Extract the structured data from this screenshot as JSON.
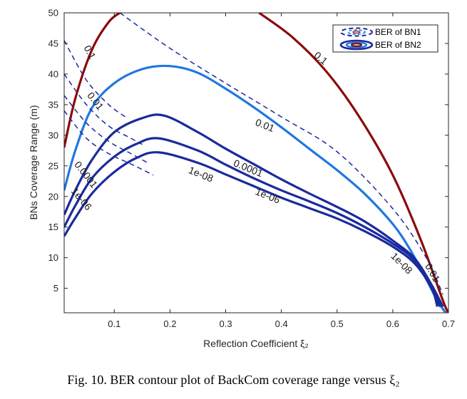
{
  "caption": "Fig. 10.  BER contour plot of BackCom coverage range versus ξ₂",
  "chart_data": {
    "type": "contour",
    "xlabel": "Reflection Coefficient ξ₂",
    "ylabel": "BNs Coverage Range (m)",
    "xlim": [
      0.01,
      0.7
    ],
    "ylim": [
      1,
      50
    ],
    "xticks": [
      "0.1",
      "0.2",
      "0.3",
      "0.4",
      "0.5",
      "0.6",
      "0.7"
    ],
    "yticks": [
      "5",
      "10",
      "15",
      "20",
      "25",
      "30",
      "35",
      "40",
      "45",
      "50"
    ],
    "grid": false,
    "legend_position": "top-right",
    "legend": [
      {
        "label": "BER of BN1",
        "style": "dashed"
      },
      {
        "label": "BER of BN2",
        "style": "solid"
      }
    ],
    "series": [
      {
        "name": "BER of BN2",
        "style": "solid",
        "level": "0.1",
        "color": "#8b0a0a",
        "points": [
          [
            0.01,
            28
          ],
          [
            0.03,
            36
          ],
          [
            0.06,
            44
          ],
          [
            0.09,
            48.5
          ],
          [
            0.11,
            50
          ]
        ]
      },
      {
        "name": "BER of BN2",
        "style": "solid",
        "level": "0.1",
        "color": "#8b0a0a",
        "points": [
          [
            0.36,
            50
          ],
          [
            0.42,
            46
          ],
          [
            0.48,
            40.5
          ],
          [
            0.54,
            33
          ],
          [
            0.6,
            23.5
          ],
          [
            0.65,
            13
          ],
          [
            0.69,
            3
          ],
          [
            0.7,
            1
          ]
        ]
      },
      {
        "name": "BER of BN2",
        "style": "solid",
        "level": "0.01",
        "color": "#1f78e0",
        "points": [
          [
            0.01,
            21
          ],
          [
            0.03,
            27.5
          ],
          [
            0.06,
            34.5
          ],
          [
            0.1,
            38.5
          ],
          [
            0.15,
            40.8
          ],
          [
            0.2,
            41.3
          ],
          [
            0.25,
            40.2
          ],
          [
            0.3,
            37.6
          ],
          [
            0.35,
            34.6
          ],
          [
            0.4,
            31.3
          ],
          [
            0.45,
            27.8
          ],
          [
            0.5,
            24.3
          ],
          [
            0.55,
            20.4
          ],
          [
            0.6,
            15.5
          ],
          [
            0.63,
            11.5
          ],
          [
            0.66,
            6.5
          ],
          [
            0.68,
            3
          ],
          [
            0.695,
            1
          ]
        ]
      },
      {
        "name": "BER of BN2",
        "style": "solid",
        "level": "0.0001",
        "color": "#1a2a9c",
        "points": [
          [
            0.01,
            17
          ],
          [
            0.03,
            21
          ],
          [
            0.06,
            26
          ],
          [
            0.1,
            30.5
          ],
          [
            0.15,
            32.8
          ],
          [
            0.19,
            33.2
          ],
          [
            0.25,
            30.5
          ],
          [
            0.3,
            27.8
          ],
          [
            0.35,
            25.3
          ],
          [
            0.4,
            22.8
          ],
          [
            0.45,
            20.5
          ],
          [
            0.5,
            18.3
          ],
          [
            0.55,
            15.9
          ],
          [
            0.6,
            12.8
          ],
          [
            0.64,
            9.8
          ],
          [
            0.67,
            5.5
          ],
          [
            0.69,
            2
          ]
        ]
      },
      {
        "name": "BER of BN2",
        "style": "solid",
        "level": "1e-06",
        "color": "#1a2a9c",
        "points": [
          [
            0.01,
            15
          ],
          [
            0.03,
            18.5
          ],
          [
            0.06,
            23
          ],
          [
            0.1,
            26.5
          ],
          [
            0.14,
            28.6
          ],
          [
            0.18,
            29.5
          ],
          [
            0.25,
            27.5
          ],
          [
            0.3,
            25.2
          ],
          [
            0.35,
            23
          ],
          [
            0.4,
            21
          ],
          [
            0.45,
            19.2
          ],
          [
            0.5,
            17.3
          ],
          [
            0.55,
            15
          ],
          [
            0.6,
            12.3
          ],
          [
            0.64,
            9.5
          ],
          [
            0.67,
            5
          ],
          [
            0.685,
            2
          ]
        ]
      },
      {
        "name": "BER of BN2",
        "style": "solid",
        "level": "1e-08",
        "color": "#1a2a9c",
        "points": [
          [
            0.01,
            13.5
          ],
          [
            0.03,
            16.5
          ],
          [
            0.06,
            20.5
          ],
          [
            0.1,
            24
          ],
          [
            0.14,
            26.3
          ],
          [
            0.18,
            27.2
          ],
          [
            0.25,
            25.5
          ],
          [
            0.3,
            23.6
          ],
          [
            0.35,
            21.7
          ],
          [
            0.4,
            19.8
          ],
          [
            0.45,
            18.1
          ],
          [
            0.5,
            16.4
          ],
          [
            0.55,
            14.3
          ],
          [
            0.6,
            11.8
          ],
          [
            0.64,
            9
          ],
          [
            0.67,
            5
          ],
          [
            0.68,
            2
          ]
        ]
      },
      {
        "name": "BER of BN1",
        "style": "dashed",
        "level": "0.1",
        "color": "#1a2a9c",
        "points": [
          [
            0.11,
            50
          ],
          [
            0.2,
            44.2
          ],
          [
            0.3,
            38.5
          ],
          [
            0.4,
            33
          ],
          [
            0.5,
            27.3
          ],
          [
            0.6,
            18
          ],
          [
            0.66,
            10
          ],
          [
            0.69,
            4
          ]
        ]
      },
      {
        "name": "BER of BN1",
        "style": "dashed",
        "level": "0.01",
        "color": "#1a2a9c",
        "points": [
          [
            0.01,
            45.5
          ],
          [
            0.05,
            39
          ],
          [
            0.09,
            35
          ],
          [
            0.12,
            33
          ]
        ]
      },
      {
        "name": "BER of BN1",
        "style": "dashed",
        "level": "0.0001",
        "color": "#1a2a9c",
        "points": [
          [
            0.01,
            40
          ],
          [
            0.05,
            35
          ],
          [
            0.09,
            31.5
          ],
          [
            0.13,
            29.5
          ],
          [
            0.15,
            28.5
          ]
        ]
      },
      {
        "name": "BER of BN1",
        "style": "dashed",
        "level": "1e-06",
        "color": "#1a2a9c",
        "points": [
          [
            0.01,
            36.5
          ],
          [
            0.05,
            32
          ],
          [
            0.09,
            29
          ],
          [
            0.13,
            27
          ],
          [
            0.16,
            25.5
          ]
        ]
      },
      {
        "name": "BER of BN1",
        "style": "dashed",
        "level": "1e-08",
        "color": "#1a2a9c",
        "points": [
          [
            0.01,
            34
          ],
          [
            0.05,
            29.5
          ],
          [
            0.09,
            27
          ],
          [
            0.13,
            25.3
          ],
          [
            0.17,
            23.5
          ]
        ]
      }
    ],
    "contour_labels": [
      {
        "text": "0.1",
        "x": 0.055,
        "y": 43.5,
        "angle": 62
      },
      {
        "text": "0.1",
        "x": 0.47,
        "y": 42.5,
        "angle": 40
      },
      {
        "text": "0.01",
        "x": 0.065,
        "y": 35.5,
        "angle": 52
      },
      {
        "text": "0.01",
        "x": 0.37,
        "y": 31.5,
        "angle": 22
      },
      {
        "text": "0.0001",
        "x": 0.048,
        "y": 23.5,
        "angle": 52
      },
      {
        "text": "0.0001",
        "x": 0.34,
        "y": 24.5,
        "angle": 22
      },
      {
        "text": "1e-06",
        "x": 0.04,
        "y": 19.5,
        "angle": 50
      },
      {
        "text": "1e-06",
        "x": 0.375,
        "y": 20,
        "angle": 22
      },
      {
        "text": "1e-08",
        "x": 0.255,
        "y": 23.5,
        "angle": 22
      },
      {
        "text": "1e-08",
        "x": 0.615,
        "y": 9,
        "angle": 45
      },
      {
        "text": "0.01",
        "x": 0.67,
        "y": 7.5,
        "angle": 60
      }
    ]
  }
}
